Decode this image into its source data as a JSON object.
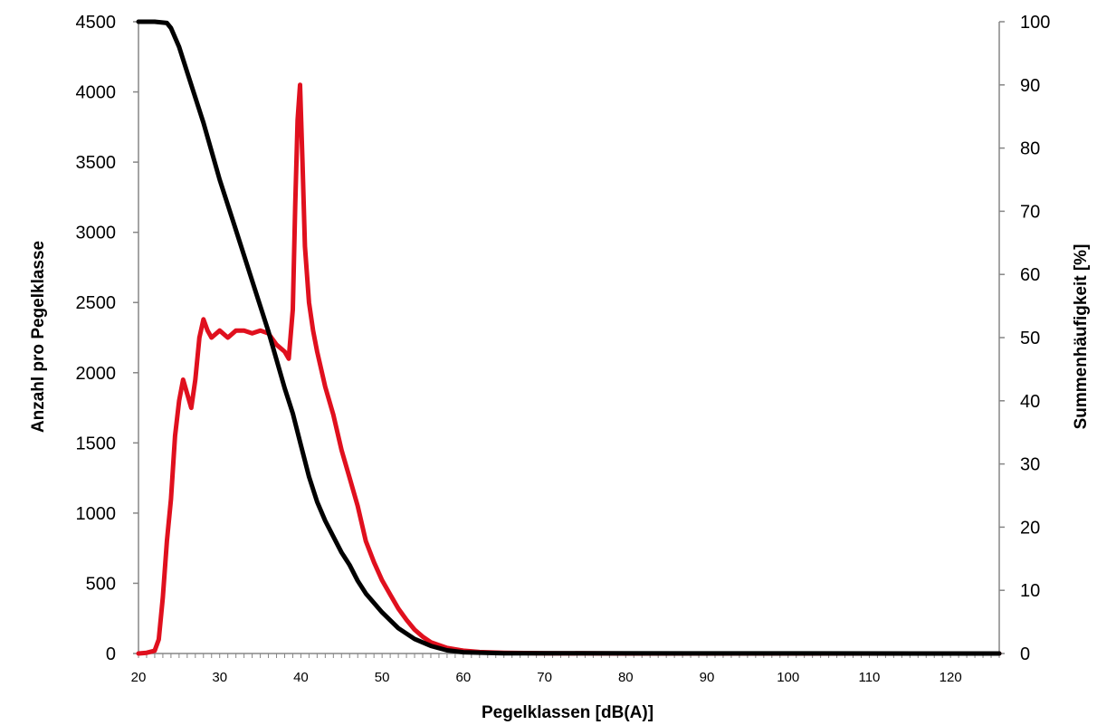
{
  "chart_data": {
    "type": "line",
    "xlabel": "Pegelklassen [dB(A)]",
    "ylabel_left": "Anzahl pro Pegelklasse",
    "ylabel_right": "Summenhäufigkeit [%]",
    "xlim": [
      20,
      126
    ],
    "ylim_left": [
      0,
      4500
    ],
    "ylim_right": [
      0,
      100
    ],
    "x_ticks": [
      20,
      30,
      40,
      50,
      60,
      70,
      80,
      90,
      100,
      110,
      120
    ],
    "y_left_ticks": [
      0,
      500,
      1000,
      1500,
      2000,
      2500,
      3000,
      3500,
      4000,
      4500
    ],
    "y_right_ticks": [
      0,
      10,
      20,
      30,
      40,
      50,
      60,
      70,
      80,
      90,
      100
    ],
    "grid": false,
    "legend": "none",
    "series": [
      {
        "axis": "left",
        "color": "#e0101e",
        "x": [
          20,
          21,
          22,
          22.5,
          23,
          23.5,
          24,
          24.5,
          25,
          25.5,
          26,
          26.5,
          27,
          27.5,
          28,
          28.5,
          29,
          30,
          31,
          32,
          33,
          34,
          35,
          36,
          37,
          38,
          38.5,
          39,
          39.3,
          39.6,
          39.9,
          40.2,
          40.5,
          41,
          41.5,
          42,
          43,
          44,
          45,
          46,
          47,
          48,
          49,
          50,
          51,
          52,
          53,
          54,
          55,
          56,
          58,
          60,
          62,
          65,
          70,
          80,
          126
        ],
        "y": [
          0,
          5,
          20,
          100,
          400,
          800,
          1100,
          1550,
          1800,
          1950,
          1850,
          1750,
          1950,
          2250,
          2380,
          2300,
          2250,
          2300,
          2250,
          2300,
          2300,
          2280,
          2300,
          2280,
          2200,
          2150,
          2100,
          2450,
          3200,
          3800,
          4050,
          3500,
          2900,
          2500,
          2300,
          2150,
          1900,
          1700,
          1450,
          1250,
          1050,
          800,
          650,
          520,
          420,
          320,
          240,
          170,
          120,
          80,
          40,
          20,
          10,
          5,
          2,
          0,
          0
        ]
      },
      {
        "axis": "right",
        "color": "#000000",
        "x": [
          20,
          22,
          23.5,
          24,
          25,
          26,
          28,
          30,
          32,
          34,
          36,
          38,
          39,
          40,
          41,
          42,
          43,
          44,
          45,
          46,
          47,
          48,
          50,
          52,
          54,
          56,
          58,
          60,
          65,
          126
        ],
        "y": [
          100,
          100,
          99.8,
          99,
          96,
          92,
          84,
          75,
          67,
          59,
          51,
          42,
          38,
          33,
          28,
          24,
          21,
          18.5,
          16,
          14,
          11.5,
          9.5,
          6.5,
          4,
          2.3,
          1.2,
          0.5,
          0.2,
          0.05,
          0
        ]
      }
    ]
  }
}
